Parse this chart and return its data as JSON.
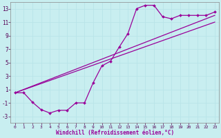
{
  "xlabel": "Windchill (Refroidissement éolien,°C)",
  "bg_color": "#c8eef0",
  "line_color": "#990099",
  "grid_color": "#b8e4e8",
  "xlim": [
    -0.5,
    23.5
  ],
  "ylim": [
    -4.0,
    14.0
  ],
  "xticks": [
    0,
    1,
    2,
    3,
    4,
    5,
    6,
    7,
    8,
    9,
    10,
    11,
    12,
    13,
    14,
    15,
    16,
    17,
    18,
    19,
    20,
    21,
    22,
    23
  ],
  "yticks": [
    -3,
    -1,
    1,
    3,
    5,
    7,
    9,
    11,
    13
  ],
  "ref_line1_x": [
    0,
    23
  ],
  "ref_line1_y": [
    0.5,
    12.0
  ],
  "ref_line2_x": [
    0,
    23
  ],
  "ref_line2_y": [
    0.5,
    11.0
  ],
  "wiggly_x": [
    0,
    1,
    2,
    3,
    4,
    5,
    6,
    7,
    8,
    9,
    10,
    11,
    12,
    13,
    14,
    15,
    16,
    17,
    18,
    19,
    20,
    21,
    22,
    23
  ],
  "wiggly_y": [
    0.5,
    0.5,
    -0.9,
    -2.0,
    -2.5,
    -2.1,
    -2.1,
    -1.0,
    -1.0,
    2.0,
    4.5,
    5.2,
    7.3,
    9.3,
    13.0,
    13.5,
    13.5,
    11.8,
    11.5,
    12.0,
    12.0,
    12.0,
    12.0,
    12.5
  ]
}
